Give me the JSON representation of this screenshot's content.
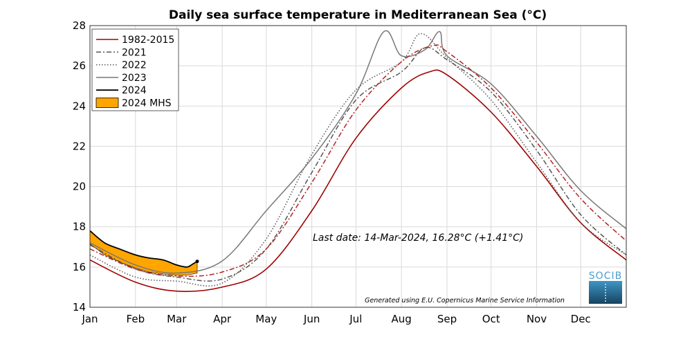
{
  "chart_data": {
    "type": "line",
    "title": "Daily sea surface temperature in Mediterranean Sea (°C)",
    "xlabel": "",
    "ylabel": "",
    "ylim": [
      14,
      28
    ],
    "yticks": [
      14,
      16,
      18,
      20,
      22,
      24,
      26,
      28
    ],
    "xlim": [
      0,
      365
    ],
    "xticks": [
      {
        "label": "Jan",
        "day": 0
      },
      {
        "label": "Feb",
        "day": 31
      },
      {
        "label": "Mar",
        "day": 59
      },
      {
        "label": "Apr",
        "day": 90
      },
      {
        "label": "May",
        "day": 120
      },
      {
        "label": "Jun",
        "day": 151
      },
      {
        "label": "Jul",
        "day": 181
      },
      {
        "label": "Aug",
        "day": 212
      },
      {
        "label": "Sep",
        "day": 243
      },
      {
        "label": "Oct",
        "day": 273
      },
      {
        "label": "Nov",
        "day": 304
      },
      {
        "label": "Dec",
        "day": 334
      }
    ],
    "grid": true,
    "legend_position": "top-left",
    "series": [
      {
        "name": "1982-2015",
        "color": "#a00000",
        "style": "solid",
        "x": [
          0,
          31,
          59,
          90,
          120,
          151,
          181,
          212,
          231,
          243,
          273,
          304,
          334,
          365
        ],
        "y": [
          16.35,
          15.25,
          14.8,
          15.0,
          15.9,
          18.8,
          22.4,
          24.9,
          25.7,
          25.55,
          23.7,
          21.0,
          18.2,
          16.35
        ]
      },
      {
        "name": "2021",
        "color": "#555555",
        "style": "dashdot",
        "x": [
          0,
          31,
          59,
          90,
          120,
          151,
          181,
          212,
          228,
          243,
          273,
          304,
          334,
          365
        ],
        "y": [
          17.1,
          15.9,
          15.5,
          15.4,
          16.9,
          20.7,
          24.3,
          25.7,
          26.9,
          26.3,
          24.7,
          21.8,
          18.6,
          16.6
        ]
      },
      {
        "name": "2022",
        "color": "#555555",
        "style": "dotted",
        "x": [
          0,
          31,
          59,
          90,
          120,
          151,
          181,
          212,
          225,
          243,
          273,
          304,
          334,
          365
        ],
        "y": [
          16.6,
          15.5,
          15.3,
          15.2,
          17.4,
          21.6,
          24.8,
          26.2,
          27.6,
          26.4,
          24.3,
          21.2,
          18.2,
          16.6
        ]
      },
      {
        "name": "2023",
        "color": "#777777",
        "style": "solid",
        "x": [
          0,
          31,
          59,
          90,
          120,
          151,
          181,
          200,
          212,
          228,
          238,
          243,
          273,
          304,
          334,
          365
        ],
        "y": [
          17.2,
          16.1,
          15.7,
          16.3,
          18.8,
          21.4,
          24.6,
          27.7,
          26.5,
          26.8,
          27.7,
          26.5,
          25.1,
          22.5,
          19.8,
          17.9
        ]
      },
      {
        "name": "2024",
        "color": "#000000",
        "style": "solid",
        "x": [
          0,
          10,
          20,
          31,
          40,
          50,
          59,
          66,
          70,
          73
        ],
        "y": [
          17.8,
          17.2,
          16.9,
          16.6,
          16.45,
          16.35,
          16.1,
          16.0,
          16.15,
          16.28
        ]
      },
      {
        "name": "Mean (dash-dot red)",
        "color": "#b22222",
        "style": "dashdot",
        "x": [
          0,
          31,
          59,
          90,
          120,
          151,
          181,
          212,
          233,
          243,
          273,
          304,
          334,
          365
        ],
        "y": [
          16.9,
          15.9,
          15.55,
          15.75,
          16.9,
          20.2,
          23.8,
          26.2,
          27.0,
          26.7,
          24.9,
          22.2,
          19.4,
          17.3
        ]
      }
    ],
    "shaded_region": {
      "name": "2024 MHS",
      "color": "#ffa500",
      "x": [
        0,
        10,
        20,
        31,
        40,
        50,
        59,
        66,
        70,
        73
      ],
      "upper": [
        17.8,
        17.2,
        16.9,
        16.6,
        16.45,
        16.35,
        16.1,
        16.0,
        16.15,
        16.28
      ],
      "lower": [
        17.15,
        16.6,
        16.25,
        15.95,
        15.75,
        15.65,
        15.6,
        15.6,
        15.65,
        15.7
      ]
    },
    "annotations": {
      "last_date": "Last date: 14-Mar-2024, 16.28°C (+1.41°C)",
      "credit": "Generated using E.U. Copernicus Marine Service Information"
    },
    "logo_text": "SOCIB"
  }
}
